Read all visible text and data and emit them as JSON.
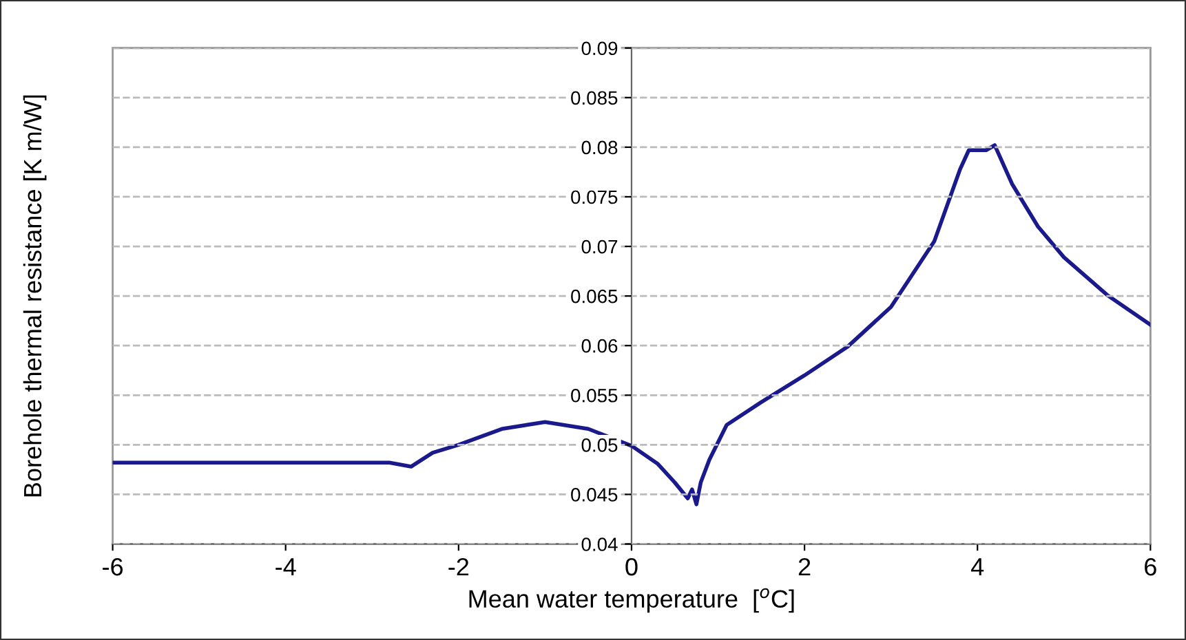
{
  "chart_data": {
    "type": "line",
    "xlabel": "Mean water temperature  [$^{o}$C]",
    "ylabel": "Borehole thermal resistance [K m/W]",
    "series": [
      {
        "color": "#1a1a8c",
        "x": [
          -6,
          -2.8,
          -2.55,
          -2.3,
          -2,
          -1.5,
          -1,
          -0.5,
          0,
          0.3,
          0.5,
          0.65,
          0.7,
          0.75,
          0.8,
          0.9,
          1.1,
          1.5,
          2,
          2.5,
          3,
          3.5,
          3.8,
          3.9,
          4.1,
          4.2,
          4.4,
          4.7,
          5,
          5.5,
          6
        ],
        "values": [
          0.0482,
          0.0482,
          0.0478,
          0.0492,
          0.05,
          0.0516,
          0.0523,
          0.0516,
          0.0499,
          0.0481,
          0.0462,
          0.0446,
          0.0455,
          0.044,
          0.0462,
          0.0485,
          0.052,
          0.0543,
          0.057,
          0.0599,
          0.0639,
          0.0705,
          0.0778,
          0.0797,
          0.0797,
          0.0802,
          0.0763,
          0.072,
          0.0689,
          0.0651,
          0.0621
        ]
      }
    ],
    "xlim": [
      -6,
      6
    ],
    "xticks": [
      -6,
      -4,
      -2,
      0,
      2,
      4,
      6
    ],
    "ylim": [
      0.04,
      0.09
    ],
    "yticks": [
      0.04,
      0.045,
      0.05,
      0.055,
      0.06,
      0.065,
      0.07,
      0.075,
      0.08,
      0.085,
      0.09
    ],
    "grid": "y",
    "legend": false,
    "line_style": "solid",
    "marker": "none"
  }
}
